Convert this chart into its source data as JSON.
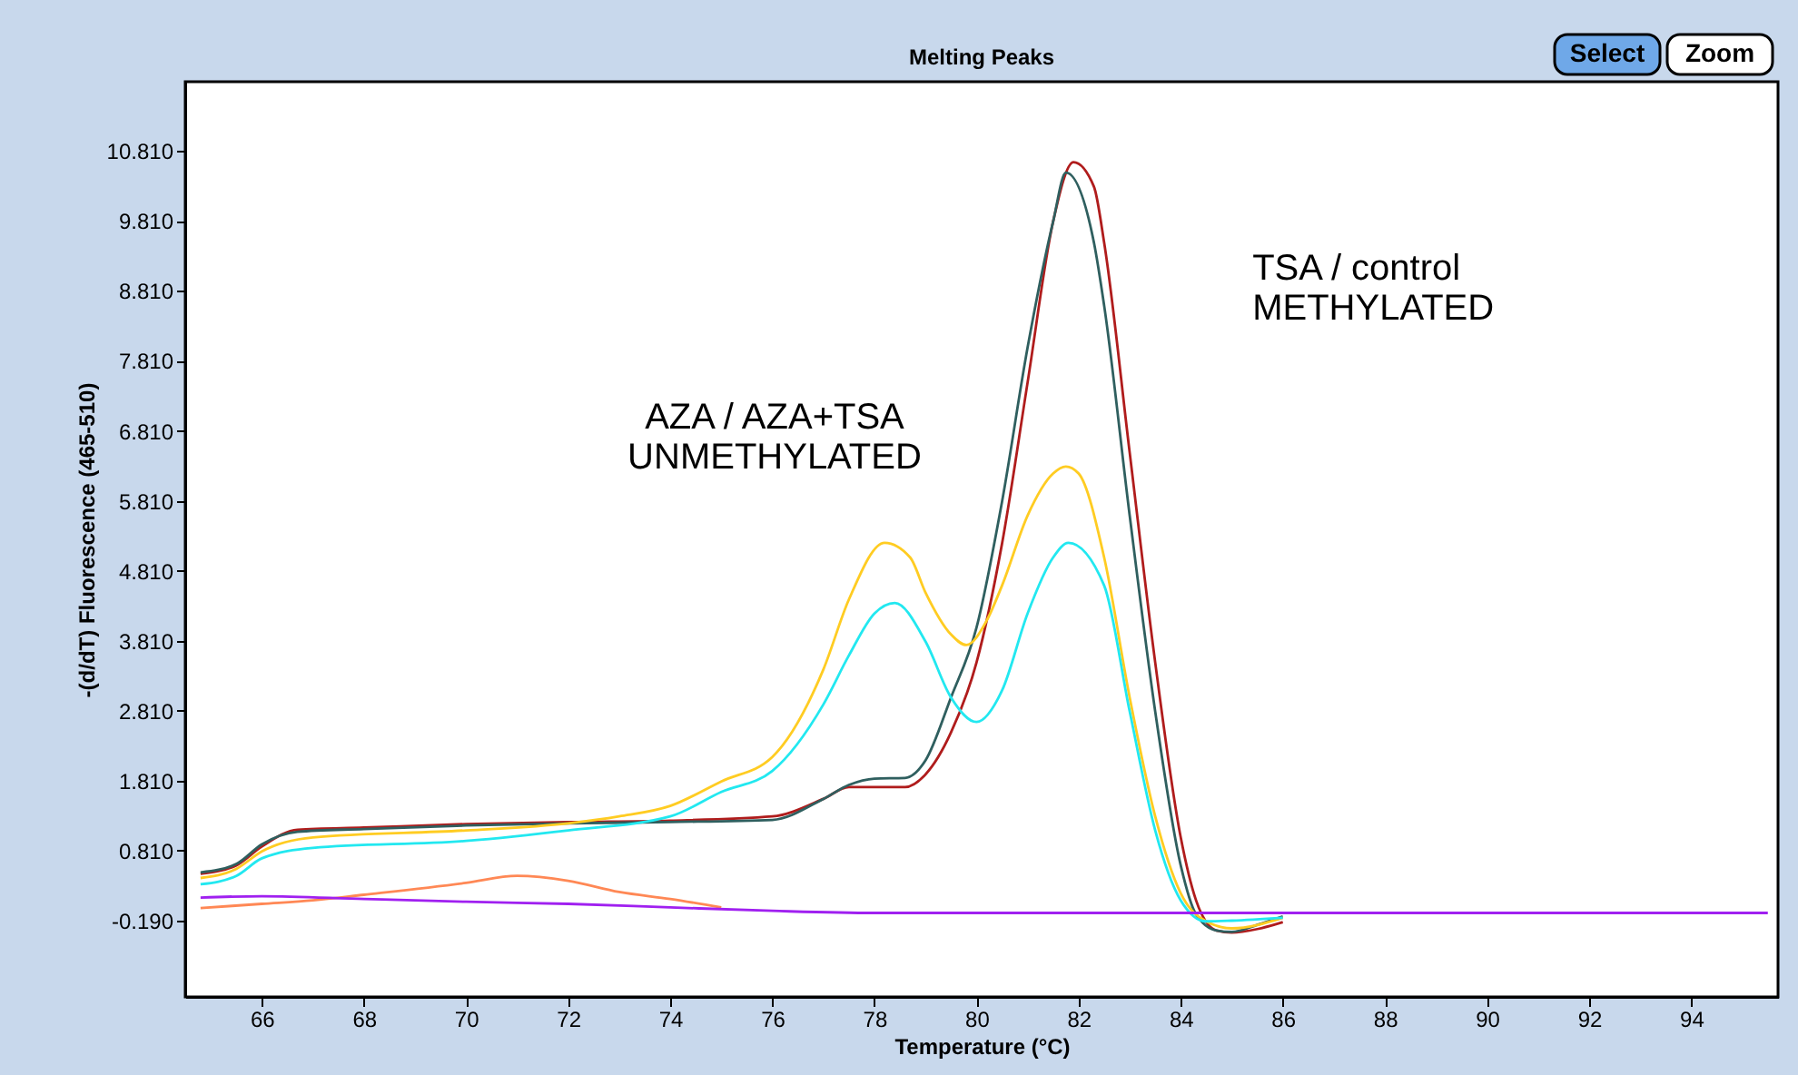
{
  "chart_data": {
    "type": "line",
    "title": "Melting Peaks",
    "xlabel": "Temperature (°C)",
    "ylabel": "-(d/dT) Fluorescence (465-510)",
    "xlim": [
      64.5,
      95.7
    ],
    "xticks": [
      66,
      68,
      70,
      72,
      74,
      76,
      78,
      80,
      82,
      84,
      86,
      88,
      90,
      92,
      94
    ],
    "ylim": [
      -1.28,
      11.8
    ],
    "yticks": [
      {
        "value": -0.19,
        "label": "-0.190"
      },
      {
        "value": 0.81,
        "label": "0.810"
      },
      {
        "value": 1.81,
        "label": "1.810"
      },
      {
        "value": 2.81,
        "label": "2.810"
      },
      {
        "value": 3.81,
        "label": "3.810"
      },
      {
        "value": 4.81,
        "label": "4.810"
      },
      {
        "value": 5.81,
        "label": "5.810"
      },
      {
        "value": 6.81,
        "label": "6.810"
      },
      {
        "value": 7.81,
        "label": "7.810"
      },
      {
        "value": 8.81,
        "label": "8.810"
      },
      {
        "value": 9.81,
        "label": "9.810"
      },
      {
        "value": 10.81,
        "label": "10.810"
      }
    ],
    "grid": false,
    "legend": false,
    "marker": "none",
    "line_style": "solid",
    "series": [
      {
        "color": "#b01c1c",
        "x": [
          64.8,
          65.5,
          66,
          66.7,
          68,
          70,
          72,
          74,
          76,
          77,
          77.5,
          78,
          78.6,
          79,
          79.5,
          80,
          80.5,
          81,
          81.5,
          81.9,
          82.3,
          82.5,
          83,
          83.5,
          84,
          84.3,
          84.7,
          85,
          85.5,
          86
        ],
        "values": [
          0.48,
          0.6,
          0.87,
          1.11,
          1.14,
          1.19,
          1.22,
          1.24,
          1.3,
          1.55,
          1.72,
          1.72,
          1.72,
          1.9,
          2.5,
          3.5,
          5.2,
          7.5,
          9.8,
          10.65,
          10.3,
          9.5,
          6.5,
          3.5,
          1.0,
          0.1,
          -0.33,
          -0.36,
          -0.31,
          -0.21
        ]
      },
      {
        "color": "#2f5f5f",
        "x": [
          64.8,
          65.5,
          66,
          66.7,
          68,
          70,
          72,
          74,
          76,
          77,
          77.5,
          78,
          78.6,
          79,
          79.5,
          80,
          80.5,
          81,
          81.5,
          81.75,
          82.3,
          82.5,
          83,
          83.5,
          84,
          84.3,
          84.7,
          85,
          85.5,
          86
        ],
        "values": [
          0.5,
          0.62,
          0.9,
          1.08,
          1.12,
          1.17,
          1.2,
          1.22,
          1.25,
          1.55,
          1.75,
          1.84,
          1.85,
          2.1,
          3.0,
          4.0,
          5.8,
          8.0,
          9.8,
          10.5,
          9.5,
          8.6,
          5.6,
          2.8,
          0.6,
          -0.1,
          -0.33,
          -0.35,
          -0.25,
          -0.13
        ]
      },
      {
        "color": "#ffcc22",
        "x": [
          64.8,
          65.5,
          66,
          67,
          70,
          72,
          73,
          74,
          75,
          76,
          77,
          77.5,
          78.2,
          78.7,
          79,
          79.5,
          79.8,
          80.2,
          80.5,
          81,
          81.5,
          81.75,
          82,
          82.5,
          83,
          83.5,
          84,
          84.5,
          85,
          86
        ],
        "values": [
          0.42,
          0.55,
          0.8,
          1.0,
          1.1,
          1.2,
          1.3,
          1.45,
          1.8,
          2.15,
          3.4,
          4.4,
          5.21,
          5.0,
          4.5,
          3.9,
          3.75,
          4.1,
          4.6,
          5.6,
          6.2,
          6.3,
          6.2,
          5.0,
          3.0,
          1.3,
          0.2,
          -0.2,
          -0.3,
          -0.15
        ]
      },
      {
        "color": "#22e8f0",
        "x": [
          64.8,
          65.5,
          66,
          67,
          70,
          72,
          74,
          75,
          76,
          77,
          77.5,
          78,
          78.4,
          79,
          79.5,
          80,
          80.5,
          81,
          81.5,
          81.8,
          82.5,
          83,
          83.5,
          84,
          84.5,
          85,
          86
        ],
        "values": [
          0.33,
          0.45,
          0.7,
          0.85,
          0.95,
          1.1,
          1.3,
          1.65,
          1.95,
          2.9,
          3.6,
          4.2,
          4.35,
          3.8,
          3.0,
          2.65,
          3.1,
          4.2,
          5.0,
          5.21,
          4.6,
          2.8,
          1.1,
          0.1,
          -0.2,
          -0.19,
          -0.15
        ]
      },
      {
        "color": "#ff8855",
        "x": [
          64.8,
          66,
          67,
          68,
          70,
          71,
          72,
          73,
          74,
          75
        ],
        "values": [
          -0.01,
          0.05,
          0.1,
          0.18,
          0.35,
          0.45,
          0.38,
          0.22,
          0.12,
          0.0
        ]
      },
      {
        "color": "#a020f0",
        "x": [
          64.8,
          66,
          68,
          70,
          72,
          74,
          76,
          78,
          80,
          85,
          90,
          95.5
        ],
        "values": [
          0.14,
          0.16,
          0.12,
          0.08,
          0.05,
          0.0,
          -0.05,
          -0.08,
          -0.08,
          -0.08,
          -0.08,
          -0.08
        ]
      }
    ],
    "annotations": [
      "AZA / AZA+TSA\nUNMETHYLATED",
      "TSA / control\nMETHYLATED",
      "Select",
      "Zoom"
    ]
  }
}
